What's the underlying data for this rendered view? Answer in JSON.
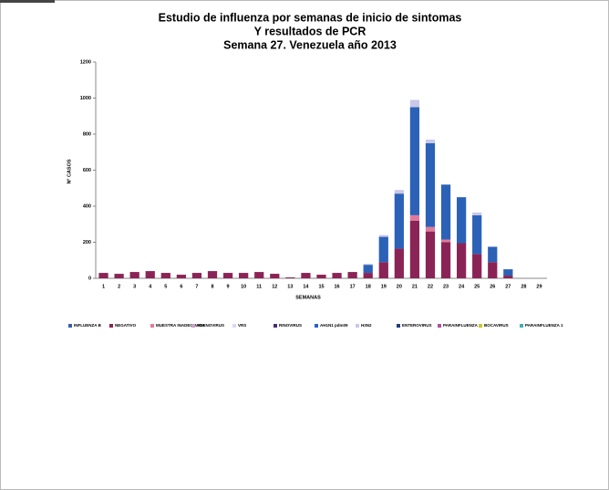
{
  "chart_data": {
    "type": "stacked-bar",
    "title": [
      "Estudio de influenza por semanas de inicio de sintomas",
      "Y resultados de PCR",
      "Semana 27. Venezuela año 2013"
    ],
    "x_label": "SEMANAS",
    "y_label": "Nº CASOS",
    "categories": [
      1,
      2,
      3,
      4,
      5,
      6,
      7,
      8,
      9,
      10,
      11,
      12,
      13,
      14,
      15,
      16,
      17,
      18,
      19,
      20,
      21,
      22,
      23,
      24,
      25,
      26,
      27,
      28,
      29
    ],
    "ylim": [
      0,
      1200
    ],
    "yticks": [
      0,
      200,
      400,
      600,
      800,
      1000,
      1200
    ],
    "series": [
      {
        "name": "INFLUENZA B",
        "color": "#3a5fa8",
        "values": [
          0,
          0,
          0,
          0,
          0,
          0,
          0,
          0,
          0,
          0,
          0,
          0,
          0,
          0,
          0,
          0,
          0,
          0,
          0,
          0,
          0,
          0,
          0,
          0,
          0,
          0,
          0,
          0,
          0
        ]
      },
      {
        "name": "NEGATIVO",
        "color": "#8b2456",
        "values": [
          30,
          25,
          35,
          40,
          30,
          20,
          30,
          40,
          30,
          30,
          35,
          25,
          5,
          30,
          20,
          30,
          35,
          30,
          90,
          165,
          320,
          260,
          200,
          195,
          135,
          90,
          15,
          0,
          0
        ]
      },
      {
        "name": "MUESTRA INADECUADA",
        "color": "#e07a9a",
        "values": [
          0,
          0,
          0,
          0,
          0,
          0,
          0,
          0,
          0,
          0,
          0,
          0,
          0,
          0,
          0,
          0,
          0,
          0,
          0,
          0,
          30,
          25,
          15,
          0,
          0,
          0,
          0,
          0,
          0
        ]
      },
      {
        "name": "ADENOVIRUS",
        "color": "#c9a0c8",
        "values": [
          0,
          0,
          0,
          0,
          0,
          0,
          0,
          0,
          0,
          0,
          0,
          0,
          0,
          0,
          0,
          0,
          0,
          0,
          0,
          0,
          0,
          0,
          0,
          0,
          0,
          0,
          0,
          0,
          0
        ]
      },
      {
        "name": "VRS",
        "color": "#d9d9ee",
        "values": [
          0,
          0,
          0,
          0,
          0,
          0,
          0,
          0,
          0,
          0,
          0,
          0,
          0,
          0,
          0,
          0,
          0,
          0,
          0,
          0,
          0,
          0,
          0,
          0,
          0,
          0,
          0,
          0,
          0
        ]
      },
      {
        "name": "RINOVIRUS",
        "color": "#4b2a6e",
        "values": [
          0,
          0,
          0,
          0,
          0,
          0,
          0,
          0,
          0,
          0,
          0,
          0,
          0,
          0,
          0,
          0,
          0,
          0,
          0,
          0,
          0,
          0,
          0,
          0,
          0,
          0,
          0,
          0,
          0
        ]
      },
      {
        "name": "AH1N1 pdm09",
        "color": "#2b62b8",
        "values": [
          0,
          0,
          0,
          0,
          0,
          0,
          0,
          0,
          0,
          0,
          0,
          0,
          0,
          0,
          0,
          0,
          0,
          45,
          140,
          305,
          600,
          465,
          305,
          255,
          215,
          85,
          35,
          0,
          0
        ]
      },
      {
        "name": "H3N2",
        "color": "#c8c8e8",
        "values": [
          0,
          0,
          0,
          0,
          0,
          0,
          0,
          0,
          0,
          0,
          0,
          0,
          0,
          0,
          0,
          0,
          0,
          5,
          10,
          20,
          40,
          20,
          0,
          0,
          15,
          0,
          0,
          0,
          0
        ]
      },
      {
        "name": "ENTEROVIRUS",
        "color": "#1f3f7a",
        "values": [
          0,
          0,
          0,
          0,
          0,
          0,
          0,
          0,
          0,
          0,
          0,
          0,
          0,
          0,
          0,
          0,
          0,
          0,
          0,
          0,
          0,
          0,
          0,
          0,
          0,
          0,
          0,
          0,
          0
        ]
      },
      {
        "name": "PARAINFLUENZA 3",
        "color": "#b04fa8",
        "values": [
          0,
          0,
          0,
          0,
          0,
          0,
          0,
          0,
          0,
          0,
          0,
          0,
          0,
          0,
          0,
          0,
          0,
          0,
          0,
          0,
          0,
          0,
          0,
          0,
          0,
          0,
          0,
          0,
          0
        ]
      },
      {
        "name": "BOCAVIRUS",
        "color": "#c8c830",
        "values": [
          0,
          0,
          0,
          0,
          0,
          0,
          0,
          0,
          0,
          0,
          0,
          0,
          0,
          0,
          0,
          0,
          0,
          0,
          0,
          0,
          0,
          0,
          0,
          0,
          0,
          0,
          0,
          0,
          0
        ]
      },
      {
        "name": "PARAINFLUENZA 1",
        "color": "#40b0b0",
        "values": [
          0,
          0,
          0,
          0,
          0,
          0,
          0,
          0,
          0,
          0,
          0,
          0,
          0,
          0,
          0,
          0,
          0,
          0,
          0,
          0,
          0,
          0,
          0,
          0,
          0,
          0,
          0,
          0,
          0
        ]
      }
    ]
  }
}
